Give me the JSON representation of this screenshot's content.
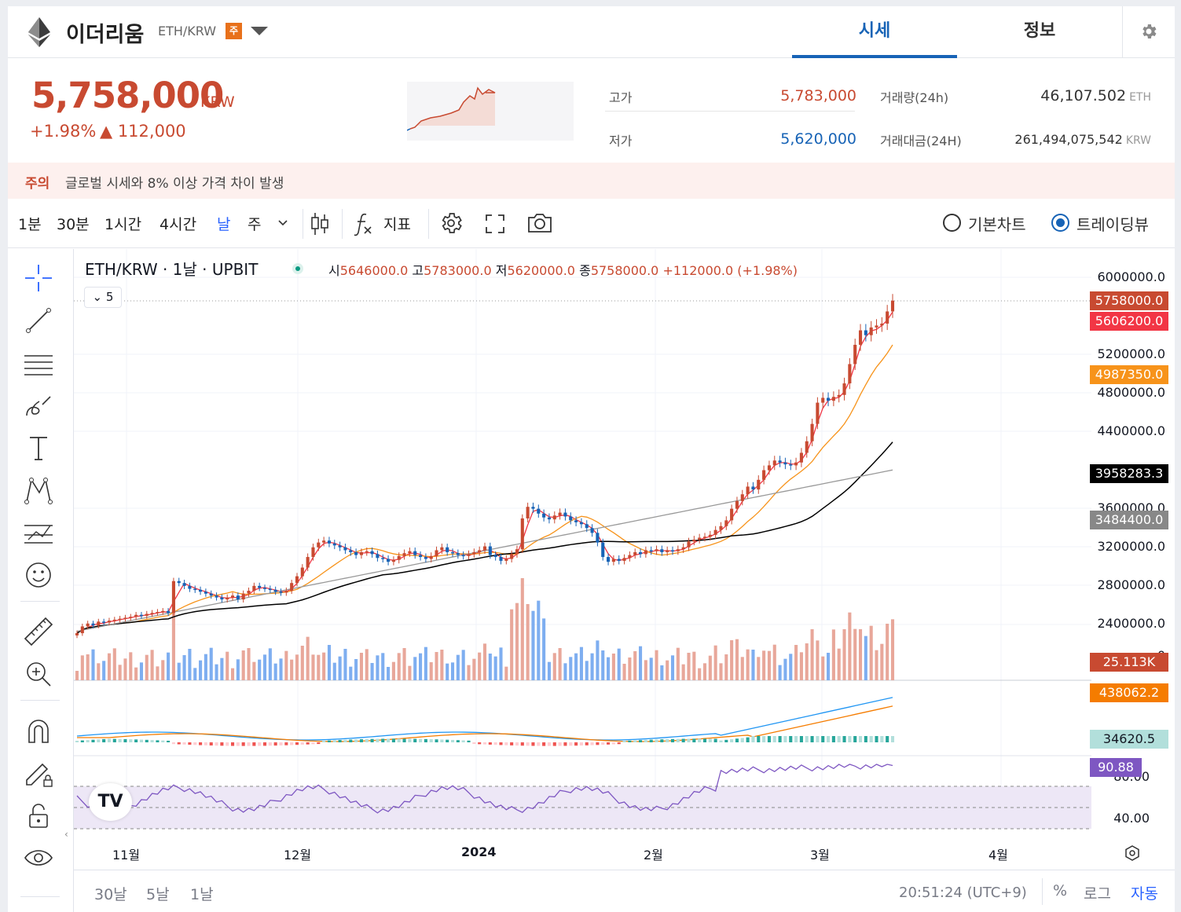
{
  "header": {
    "coin_name": "이더리움",
    "pair": "ETH/KRW",
    "warning_tag": "주",
    "tabs": [
      {
        "label": "시세"
      },
      {
        "label": "정보"
      }
    ]
  },
  "ticker": {
    "price": "5,758,000",
    "price_unit": "KRW",
    "change_pct": "+1.98%",
    "change_abs": "▲ 112,000",
    "high_label": "고가",
    "high_value": "5,783,000",
    "low_label": "저가",
    "low_value": "5,620,000",
    "volume_label": "거래량(24h)",
    "volume_value": "46,107.502",
    "volume_unit": "ETH",
    "amount_label": "거래대금(24H)",
    "amount_value": "261,494,075,542",
    "amount_unit": "KRW",
    "up_color": "#c84a31",
    "down_color": "#1763b6"
  },
  "notice": {
    "tag": "주의",
    "text": "글로벌 시세와 8% 이상 가격 차이 발생"
  },
  "toolbar": {
    "timeframes": [
      "1분",
      "30분",
      "1시간",
      "4시간",
      "날",
      "주"
    ],
    "active_timeframe": "날",
    "indicator_label": "지표",
    "chart_modes": [
      {
        "label": "기본차트",
        "selected": false
      },
      {
        "label": "트레이딩뷰",
        "selected": true
      }
    ]
  },
  "chart_legend": {
    "title": "ETH/KRW · 1날 · UPBIT",
    "open_label": "시",
    "open": "5646000.0",
    "high_label": "고",
    "high": "5783000.0",
    "low_label": "저",
    "low": "5620000.0",
    "close_label": "종",
    "close": "5758000.0",
    "change": "+112000.0 (+1.98%)",
    "indicator_count": "5"
  },
  "chart_data": {
    "type": "candlestick",
    "price_axis_ticks": [
      "6000000.0",
      "5200000.0",
      "4800000.0",
      "4400000.0",
      "3600000.0",
      "3200000.0",
      "2800000.0",
      "2400000.0",
      "0"
    ],
    "ylim": [
      2000000,
      6000000
    ],
    "price_tags": [
      {
        "value": "5758000.0",
        "color": "#c84a31",
        "series": "close"
      },
      {
        "value": "5606200.0",
        "color": "#f23645",
        "series": "ma-short"
      },
      {
        "value": "4987350.0",
        "color": "#f7931a",
        "series": "ma-mid"
      },
      {
        "value": "3958283.3",
        "color": "#000000",
        "series": "ma-long"
      },
      {
        "value": "3484400.0",
        "color": "#888888",
        "series": "ma-longest"
      },
      {
        "value": "25.113K",
        "color": "#c84a31",
        "series": "volume"
      },
      {
        "value": "438062.2",
        "color": "#f57c00",
        "series": "macd"
      },
      {
        "value": "34620.5",
        "color": "#b2dfdb",
        "series": "macd-histogram"
      },
      {
        "value": "90.88",
        "color": "#7e57c2",
        "series": "rsi"
      }
    ],
    "rsi_axis_ticks": [
      "80.00",
      "40.00"
    ],
    "x_labels": [
      "11월",
      "12월",
      "2024",
      "2월",
      "3월",
      "4월"
    ],
    "closes": [
      2310000,
      2380000,
      2410000,
      2390000,
      2430000,
      2420000,
      2440000,
      2450000,
      2460000,
      2470000,
      2480000,
      2500000,
      2490000,
      2510000,
      2520000,
      2530000,
      2540000,
      2520000,
      2850000,
      2830000,
      2800000,
      2770000,
      2760000,
      2740000,
      2720000,
      2700000,
      2680000,
      2660000,
      2680000,
      2700000,
      2660000,
      2720000,
      2750000,
      2800000,
      2780000,
      2770000,
      2760000,
      2740000,
      2730000,
      2750000,
      2830000,
      2900000,
      2990000,
      3100000,
      3200000,
      3250000,
      3270000,
      3240000,
      3220000,
      3200000,
      3170000,
      3150000,
      3120000,
      3150000,
      3160000,
      3130000,
      3090000,
      3080000,
      3050000,
      3070000,
      3110000,
      3140000,
      3160000,
      3120000,
      3100000,
      3080000,
      3110000,
      3170000,
      3200000,
      3150000,
      3140000,
      3120000,
      3110000,
      3130000,
      3150000,
      3170000,
      3210000,
      3120000,
      3100000,
      3060000,
      3080000,
      3130000,
      3180000,
      3500000,
      3620000,
      3600000,
      3550000,
      3510000,
      3490000,
      3530000,
      3560000,
      3520000,
      3480000,
      3460000,
      3440000,
      3400000,
      3350000,
      3250000,
      3100000,
      3050000,
      3080000,
      3060000,
      3090000,
      3120000,
      3150000,
      3130000,
      3170000,
      3160000,
      3180000,
      3150000,
      3170000,
      3160000,
      3180000,
      3200000,
      3260000,
      3280000,
      3300000,
      3310000,
      3330000,
      3380000,
      3420000,
      3480000,
      3600000,
      3680000,
      3750000,
      3830000,
      3800000,
      3900000,
      4000000,
      4050000,
      4100000,
      4080000,
      4060000,
      4050000,
      4080000,
      4180000,
      4300000,
      4480000,
      4700000,
      4750000,
      4720000,
      4760000,
      4780000,
      4900000,
      5100000,
      5300000,
      5450000,
      5400000,
      5480000,
      5500000,
      5520000,
      5646000,
      5758000
    ],
    "volume_axis_label": "25.113K"
  },
  "bottom_bar": {
    "ranges": [
      "30날",
      "5날",
      "1날"
    ],
    "clock": "20:51:24 (UTC+9)",
    "scales": [
      "%",
      "로그",
      "자동"
    ],
    "active_scale": "자동"
  }
}
